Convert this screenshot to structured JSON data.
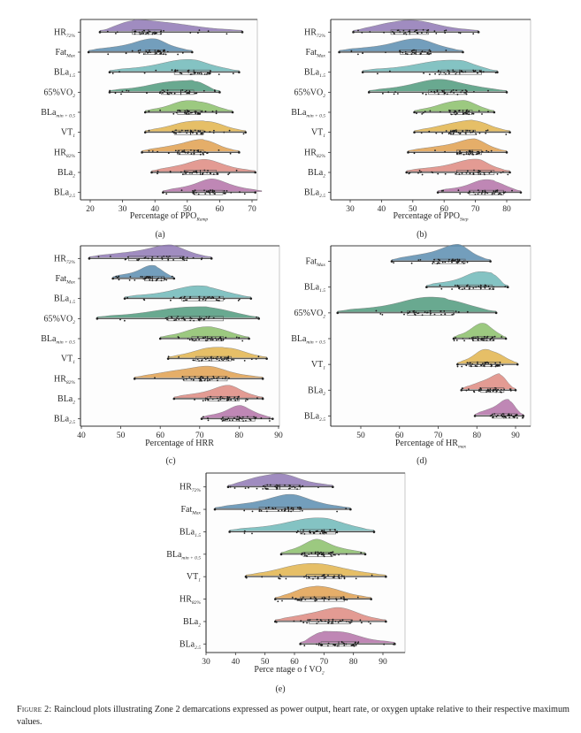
{
  "figure": {
    "caption_label": "Figure 2:",
    "caption_text": " Raincloud plots illustrating Zone 2 demarcations expressed as power output, heart rate, or oxygen uptake relative to their respective maximum values."
  },
  "colors": {
    "HR72": "#8f78b5",
    "FatMax": "#5b8db0",
    "BLa15": "#6fb8b8",
    "VO2_65": "#4f9a7c",
    "BLamin05": "#8bbf6a",
    "VT1": "#e2b44c",
    "HR82": "#e0a04f",
    "BLa2": "#de8a80",
    "BLa25": "#b472a8",
    "frame": "#555555",
    "points": "#1e1e1e"
  },
  "chart_data": [
    {
      "id": "a",
      "type": "raincloud",
      "panel_label": "(a)",
      "xlabel": "Percentage of PPO",
      "xlabel_sub": "Ramp",
      "xlim": [
        19,
        74
      ],
      "xticks": [
        20,
        30,
        40,
        50,
        60,
        70
      ],
      "grid": false,
      "categories": [
        {
          "key": "HR72",
          "label": "HR",
          "sub": "72%",
          "min": 23,
          "q1": 33,
          "median": 38,
          "q3": 42,
          "max": 67,
          "peak": 34,
          "cloud_max": 67
        },
        {
          "key": "FatMax",
          "label": "Fat",
          "sub": "Max",
          "min": 19.5,
          "q1": 37,
          "median": 40,
          "q3": 43,
          "max": 51.5,
          "peak": 40,
          "cloud_max": 51.5
        },
        {
          "key": "BLa15",
          "label": "BLa",
          "sub": "1.5",
          "min": 26,
          "q1": 46,
          "median": 52,
          "q3": 57,
          "max": 66,
          "peak": 52,
          "cloud_max": 66
        },
        {
          "key": "VO2_65",
          "label": "65%VO",
          "sub": "2",
          "min": 26,
          "q1": 42,
          "median": 48,
          "q3": 52,
          "max": 60,
          "peak": 52,
          "cloud_max": 60
        },
        {
          "key": "BLamin05",
          "label": "BLa",
          "sub": "min + 0.5",
          "min": 37,
          "q1": 47,
          "median": 50,
          "q3": 54,
          "max": 64,
          "peak": 53,
          "cloud_max": 64
        },
        {
          "key": "VT1",
          "label": "VT",
          "sub": "1",
          "min": 37,
          "q1": 46,
          "median": 51,
          "q3": 55,
          "max": 68,
          "peak": 55,
          "cloud_max": 68
        },
        {
          "key": "HR82",
          "label": "HR",
          "sub": "82%",
          "min": 36,
          "q1": 47,
          "median": 52,
          "q3": 55,
          "max": 66,
          "peak": 55,
          "cloud_max": 66
        },
        {
          "key": "BLa2",
          "label": "BLa",
          "sub": "2",
          "min": 39,
          "q1": 49,
          "median": 54,
          "q3": 59,
          "max": 71,
          "peak": 55,
          "cloud_max": 71
        },
        {
          "key": "BLa25",
          "label": "BLa",
          "sub": "2.5",
          "min": 42.5,
          "q1": 52,
          "median": 57,
          "q3": 61,
          "max": 71,
          "peak": 58,
          "cloud_max": 73
        }
      ]
    },
    {
      "id": "b",
      "type": "raincloud",
      "panel_label": "(b)",
      "xlabel": "Percentage of PPO",
      "xlabel_sub": "Step",
      "xlim": [
        24,
        86
      ],
      "xticks": [
        30,
        40,
        50,
        60,
        70,
        80
      ],
      "grid": false,
      "categories": [
        {
          "key": "HR72",
          "label": "HR",
          "sub": "72%",
          "min": 31,
          "q1": 43,
          "median": 49,
          "q3": 55,
          "max": 71,
          "peak": 47,
          "cloud_max": 71
        },
        {
          "key": "FatMax",
          "label": "Fat",
          "sub": "Max",
          "min": 26.5,
          "q1": 46,
          "median": 51,
          "q3": 55,
          "max": 66,
          "peak": 53,
          "cloud_max": 66
        },
        {
          "key": "BLa15",
          "label": "BLa",
          "sub": "1.5",
          "min": 34,
          "q1": 59,
          "median": 65,
          "q3": 72,
          "max": 77,
          "peak": 65,
          "cloud_max": 77
        },
        {
          "key": "VO2_65",
          "label": "65%VO",
          "sub": "2",
          "min": 36,
          "q1": 55,
          "median": 60,
          "q3": 67,
          "max": 80,
          "peak": 60,
          "cloud_max": 80
        },
        {
          "key": "BLamin05",
          "label": "BLa",
          "sub": "min + 0.5",
          "min": 50.5,
          "q1": 62,
          "median": 66,
          "q3": 69,
          "max": 76,
          "peak": 66,
          "cloud_max": 76
        },
        {
          "key": "VT1",
          "label": "VT",
          "sub": "1",
          "min": 50.5,
          "q1": 62,
          "median": 67,
          "q3": 70,
          "max": 81,
          "peak": 69,
          "cloud_max": 81
        },
        {
          "key": "HR82",
          "label": "HR",
          "sub": "82%",
          "min": 48.5,
          "q1": 64,
          "median": 69,
          "q3": 72,
          "max": 80,
          "peak": 70,
          "cloud_max": 80
        },
        {
          "key": "BLa2",
          "label": "BLa",
          "sub": "2",
          "min": 48,
          "q1": 64,
          "median": 71,
          "q3": 76,
          "max": 81,
          "peak": 71,
          "cloud_max": 81
        },
        {
          "key": "BLa25",
          "label": "BLa",
          "sub": "2.5",
          "min": 58,
          "q1": 68,
          "median": 73,
          "q3": 79,
          "max": 84.5,
          "peak": 76,
          "cloud_max": 84.5
        }
      ]
    },
    {
      "id": "c",
      "type": "raincloud",
      "panel_label": "(c)",
      "xlabel": "Percentage of HRR",
      "xlabel_sub": "",
      "xlim": [
        40,
        90
      ],
      "xticks": [
        40,
        50,
        60,
        70,
        80,
        90
      ],
      "grid": false,
      "categories": [
        {
          "key": "HR72",
          "label": "HR",
          "sub": "72%",
          "min": 42,
          "q1": 52,
          "median": 62,
          "q3": 66,
          "max": 73,
          "peak": 63,
          "cloud_max": 73
        },
        {
          "key": "FatMax",
          "label": "Fat",
          "sub": "Max",
          "min": 48,
          "q1": 56,
          "median": 58,
          "q3": 61,
          "max": 63.5,
          "peak": 59,
          "cloud_max": 63.5
        },
        {
          "key": "BLa15",
          "label": "BLa",
          "sub": "1.5",
          "min": 51,
          "q1": 65.5,
          "median": 70,
          "q3": 76,
          "max": 83,
          "peak": 72,
          "cloud_max": 83
        },
        {
          "key": "VO2_65",
          "label": "65%VO",
          "sub": "2",
          "min": 44,
          "q1": 62,
          "median": 70,
          "q3": 76,
          "max": 85,
          "peak": 72,
          "cloud_max": 85
        },
        {
          "key": "BLamin05",
          "label": "BLa",
          "sub": "min + 0.5",
          "min": 60,
          "q1": 68,
          "median": 72,
          "q3": 76,
          "max": 82.5,
          "peak": 73,
          "cloud_max": 82.5
        },
        {
          "key": "VT1",
          "label": "VT",
          "sub": "1",
          "min": 62,
          "q1": 69,
          "median": 73,
          "q3": 78,
          "max": 87,
          "peak": 76,
          "cloud_max": 87
        },
        {
          "key": "HR82",
          "label": "HR",
          "sub": "82%",
          "min": 53.5,
          "q1": 66,
          "median": 72,
          "q3": 77,
          "max": 86,
          "peak": 70,
          "cloud_max": 86
        },
        {
          "key": "BLa2",
          "label": "BLa",
          "sub": "2",
          "min": 63.5,
          "q1": 72,
          "median": 77,
          "q3": 80,
          "max": 86,
          "peak": 78,
          "cloud_max": 86
        },
        {
          "key": "BLa25",
          "label": "BLa",
          "sub": "2.5",
          "min": 70.5,
          "q1": 76,
          "median": 80,
          "q3": 84,
          "max": 88.5,
          "peak": 81,
          "cloud_max": 88
        }
      ]
    },
    {
      "id": "d",
      "type": "raincloud",
      "panel_label": "(d)",
      "xlabel": "Percentage of HR",
      "xlabel_sub": "max",
      "xlim": [
        43,
        93
      ],
      "xticks": [
        50,
        60,
        70,
        80,
        90
      ],
      "grid": false,
      "categories": [
        {
          "key": "FatMax",
          "label": "Fat",
          "sub": "Max",
          "min": 58,
          "q1": 69,
          "median": 75,
          "q3": 77,
          "max": 83.5,
          "peak": 75.5,
          "cloud_max": 83.5
        },
        {
          "key": "BLa15",
          "label": "BLa",
          "sub": "1.5",
          "min": 67,
          "q1": 75.5,
          "median": 81,
          "q3": 84,
          "max": 88,
          "peak": 84,
          "cloud_max": 88
        },
        {
          "key": "VO2_65",
          "label": "65%VO",
          "sub": "2",
          "min": 44,
          "q1": 62,
          "median": 68,
          "q3": 74,
          "max": 85,
          "peak": 72,
          "cloud_max": 85
        },
        {
          "key": "BLamin05",
          "label": "BLa",
          "sub": "min + 0.5",
          "min": 74,
          "q1": 79,
          "median": 82,
          "q3": 84.5,
          "max": 87.5,
          "peak": 82,
          "cloud_max": 87.5
        },
        {
          "key": "VT1",
          "label": "VT",
          "sub": "1",
          "min": 75,
          "q1": 78,
          "median": 82,
          "q3": 86,
          "max": 90.5,
          "peak": 83.5,
          "cloud_max": 90.5
        },
        {
          "key": "BLa2",
          "label": "BLa",
          "sub": "2",
          "min": 76,
          "q1": 81,
          "median": 85,
          "q3": 87,
          "max": 90,
          "peak": 86,
          "cloud_max": 90
        },
        {
          "key": "BLa25",
          "label": "BLa",
          "sub": "2.5",
          "min": 79.5,
          "q1": 84,
          "median": 87,
          "q3": 90,
          "max": 92,
          "peak": 88.5,
          "cloud_max": 92
        }
      ]
    },
    {
      "id": "e",
      "type": "raincloud",
      "panel_label": "(e)",
      "xlabel": "Perce ntage o f VO",
      "xlabel_sub": "2",
      "xlim": [
        30,
        97
      ],
      "xticks": [
        30,
        40,
        50,
        60,
        70,
        80,
        90
      ],
      "grid": false,
      "categories": [
        {
          "key": "HR72",
          "label": "HR",
          "sub": "72%",
          "min": 37.5,
          "q1": 50,
          "median": 55,
          "q3": 62,
          "max": 73,
          "peak": 52,
          "cloud_max": 73
        },
        {
          "key": "FatMax",
          "label": "Fat",
          "sub": "Max",
          "min": 33,
          "q1": 48,
          "median": 58,
          "q3": 62,
          "max": 79,
          "peak": 59,
          "cloud_max": 79
        },
        {
          "key": "BLa15",
          "label": "BLa",
          "sub": "1.5",
          "min": 38,
          "q1": 62,
          "median": 70,
          "q3": 74,
          "max": 87,
          "peak": 71,
          "cloud_max": 87
        },
        {
          "key": "BLamin05",
          "label": "BLa",
          "sub": "min + 0.5",
          "min": 55.5,
          "q1": 63,
          "median": 68,
          "q3": 73,
          "max": 84,
          "peak": 67,
          "cloud_max": 84
        },
        {
          "key": "VT1",
          "label": "VT",
          "sub": "1",
          "min": 43.5,
          "q1": 64,
          "median": 70,
          "q3": 76,
          "max": 91,
          "peak": 66,
          "cloud_max": 91
        },
        {
          "key": "HR82",
          "label": "HR",
          "sub": "82%",
          "min": 53.5,
          "q1": 62,
          "median": 70,
          "q3": 77,
          "max": 86,
          "peak": 67,
          "cloud_max": 86
        },
        {
          "key": "BLa2",
          "label": "BLa",
          "sub": "2",
          "min": 53.5,
          "q1": 65,
          "median": 73,
          "q3": 79,
          "max": 91,
          "peak": 75,
          "cloud_max": 91
        },
        {
          "key": "BLa25",
          "label": "BLa",
          "sub": "2.5",
          "min": 62,
          "q1": 69,
          "median": 75,
          "q3": 81,
          "max": 94,
          "peak": 70,
          "cloud_max": 94
        }
      ]
    }
  ]
}
